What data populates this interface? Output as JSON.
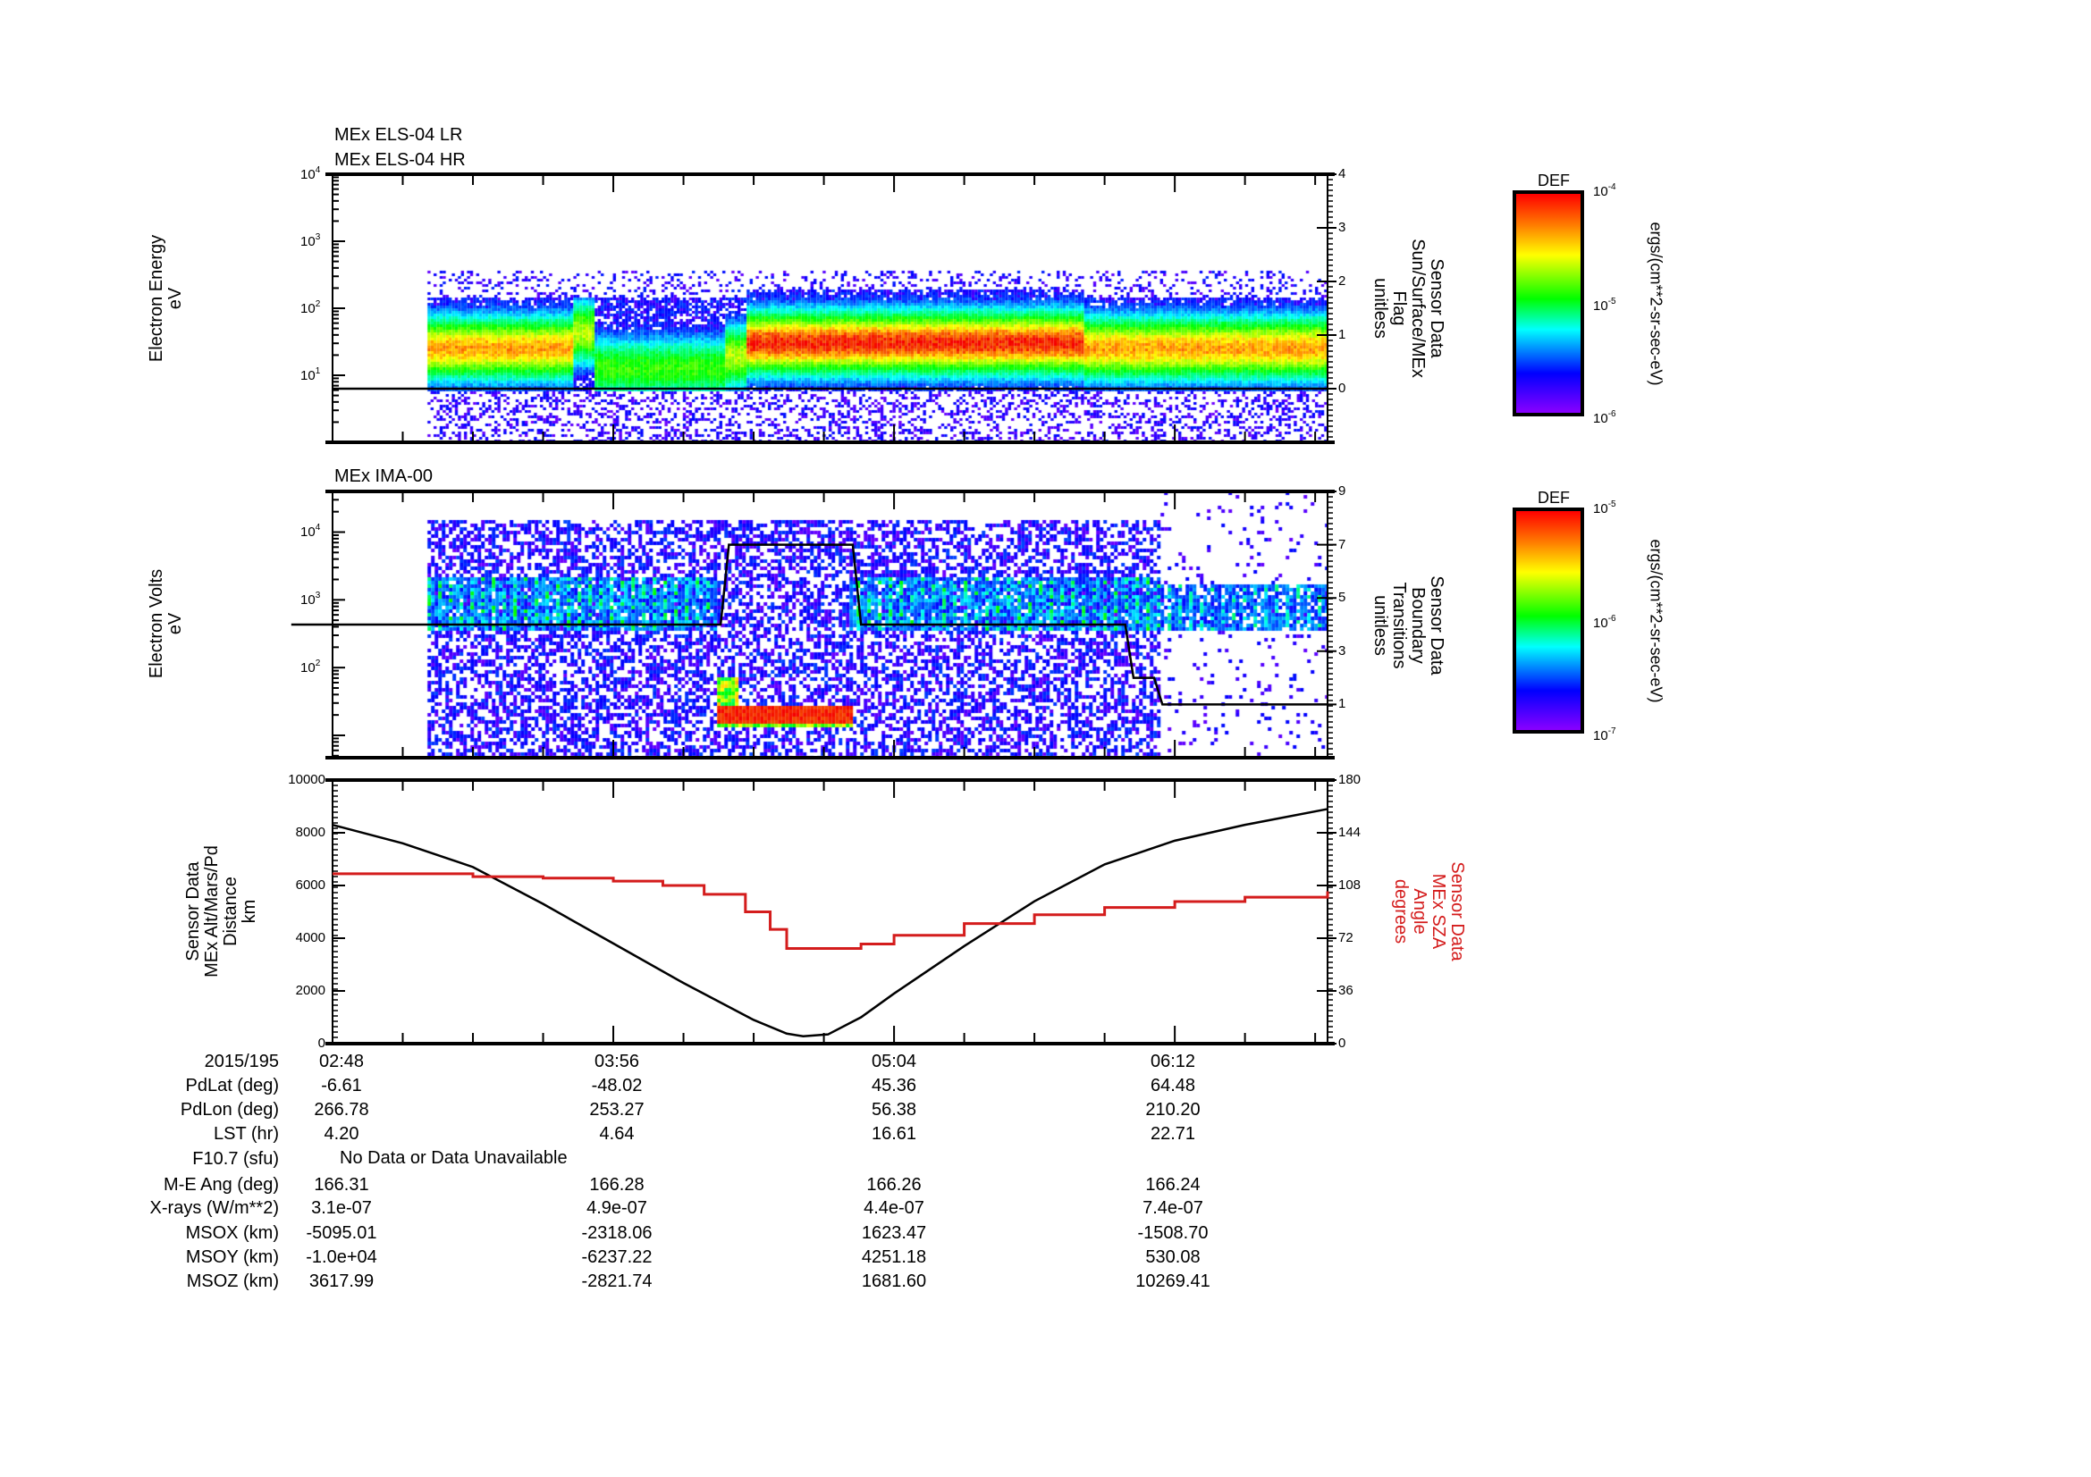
{
  "panels": {
    "els": {
      "titles": [
        "MEx ELS-04 LR",
        "MEx ELS-04 HR"
      ],
      "ylabel": [
        "Electron Energy",
        "eV"
      ],
      "yticks": [
        {
          "base": "10",
          "exp": "4"
        },
        {
          "base": "10",
          "exp": "3"
        },
        {
          "base": "10",
          "exp": "2"
        },
        {
          "base": "10",
          "exp": "1"
        }
      ],
      "yticks_log": [
        4,
        3,
        2,
        1
      ],
      "ylim_log10": [
        0,
        4
      ],
      "right_label": [
        "Sensor Data",
        "Sun/Surface/MEx",
        "Flag",
        "unitless"
      ],
      "right_ticks": [
        "4",
        "3",
        "2",
        "1",
        "0"
      ],
      "right_tick_values": [
        4,
        3,
        2,
        1,
        0
      ],
      "right_ylim": [
        -1,
        4
      ],
      "flag_line_value": 0,
      "colorbar": {
        "title": "DEF",
        "ticks": [
          {
            "base": "10",
            "exp": "-4"
          },
          {
            "base": "10",
            "exp": "-5"
          },
          {
            "base": "10",
            "exp": "-6"
          }
        ],
        "unit": "ergs/(cm**2-sr-sec-eV)"
      }
    },
    "ima": {
      "title": "MEx IMA-00",
      "ylabel": [
        "Electron Volts",
        "eV"
      ],
      "yticks": [
        {
          "base": "10",
          "exp": "4"
        },
        {
          "base": "10",
          "exp": "3"
        },
        {
          "base": "10",
          "exp": "2"
        }
      ],
      "yticks_log": [
        4,
        3,
        2
      ],
      "ylim_log10": [
        0.67,
        4.6
      ],
      "right_label": [
        "Sensor Data",
        "Boundary",
        "Transitions",
        "unitless"
      ],
      "right_ticks": [
        "9",
        "7",
        "5",
        "3",
        "1"
      ],
      "right_tick_values": [
        9,
        7,
        5,
        3,
        1
      ],
      "right_ylim": [
        -1,
        9
      ],
      "boundary_steps": [
        [
          -10,
          4
        ],
        [
          94,
          4
        ],
        [
          96,
          7
        ],
        [
          126,
          7
        ],
        [
          128,
          4
        ],
        [
          192,
          4
        ],
        [
          194,
          2
        ],
        [
          199,
          2
        ],
        [
          201,
          1
        ],
        [
          241,
          1
        ]
      ],
      "colorbar": {
        "title": "DEF",
        "ticks": [
          {
            "base": "10",
            "exp": "-5"
          },
          {
            "base": "10",
            "exp": "-6"
          },
          {
            "base": "10",
            "exp": "-7"
          }
        ],
        "unit": "ergs/(cm**2-sr-sec-eV)"
      }
    }
  },
  "chart_data": {
    "type": "line",
    "x_unit": "minutes after 02:48 (2015/195)",
    "xlim": [
      0,
      241
    ],
    "xticks": [
      0,
      68,
      136,
      204
    ],
    "xtick_labels": [
      "02:48",
      "03:56",
      "05:04",
      "06:12"
    ],
    "left_axis": {
      "label": [
        "Sensor Data",
        "MEx Alt/Mars/Pd",
        "Distance",
        "km"
      ],
      "ylim": [
        0,
        10000
      ],
      "ticks": [
        "10000",
        "8000",
        "6000",
        "4000",
        "2000",
        "0"
      ],
      "tick_values": [
        10000,
        8000,
        6000,
        4000,
        2000,
        0
      ]
    },
    "right_axis": {
      "label": [
        "Sensor Data",
        "MEx SZA",
        "Angle",
        "degrees"
      ],
      "ylim": [
        0,
        180
      ],
      "ticks": [
        "180",
        "144",
        "108",
        "72",
        "36",
        "0"
      ],
      "tick_values": [
        180,
        144,
        108,
        72,
        36,
        0
      ],
      "color": "#d41c1c"
    },
    "series": [
      {
        "name": "MEx Alt/Mars/Pd Distance",
        "axis": "left",
        "color": "#000000",
        "x": [
          0,
          17,
          34,
          51,
          68,
          85,
          102,
          110,
          114,
          120,
          128,
          136,
          153,
          170,
          187,
          204,
          221,
          241
        ],
        "y": [
          8300,
          7600,
          6700,
          5300,
          3800,
          2300,
          900,
          380,
          280,
          350,
          1000,
          1900,
          3700,
          5400,
          6800,
          7700,
          8300,
          8900
        ]
      },
      {
        "name": "MEx SZA Angle",
        "axis": "right",
        "color": "#d41c1c",
        "x": [
          0,
          17,
          34,
          51,
          68,
          80,
          90,
          100,
          106,
          110,
          122,
          128,
          136,
          153,
          170,
          187,
          204,
          221,
          241
        ],
        "y": [
          116,
          116,
          114,
          113,
          111,
          108,
          102,
          90,
          78,
          65,
          65,
          68,
          74,
          82,
          88,
          93,
          97,
          100,
          104
        ]
      }
    ]
  },
  "table": {
    "rows": [
      {
        "label": "2015/195",
        "values": [
          "02:48",
          "03:56",
          "05:04",
          "06:12"
        ]
      },
      {
        "label": "PdLat (deg)",
        "values": [
          "-6.61",
          "-48.02",
          "45.36",
          "64.48"
        ]
      },
      {
        "label": "PdLon (deg)",
        "values": [
          "266.78",
          "253.27",
          "56.38",
          "210.20"
        ]
      },
      {
        "label": "LST (hr)",
        "values": [
          "4.20",
          "4.64",
          "16.61",
          "22.71"
        ]
      },
      {
        "label": "F10.7 (sfu)",
        "note": "No Data or Data Unavailable"
      },
      {
        "label": "M-E Ang (deg)",
        "values": [
          "166.31",
          "166.28",
          "166.26",
          "166.24"
        ]
      },
      {
        "label": "X-rays (W/m**2)",
        "values": [
          "3.1e-07",
          "4.9e-07",
          "4.4e-07",
          "7.4e-07"
        ]
      },
      {
        "label": "MSOX (km)",
        "values": [
          "-5095.01",
          "-2318.06",
          "1623.47",
          "-1508.70"
        ]
      },
      {
        "label": "MSOY (km)",
        "values": [
          "-1.0e+04",
          "-6237.22",
          "4251.18",
          "530.08"
        ]
      },
      {
        "label": "MSOZ (km)",
        "values": [
          "3617.99",
          "-2821.74",
          "1681.60",
          "10269.41"
        ]
      }
    ]
  },
  "colors": {
    "red": "#d41c1c",
    "black": "#000000"
  }
}
